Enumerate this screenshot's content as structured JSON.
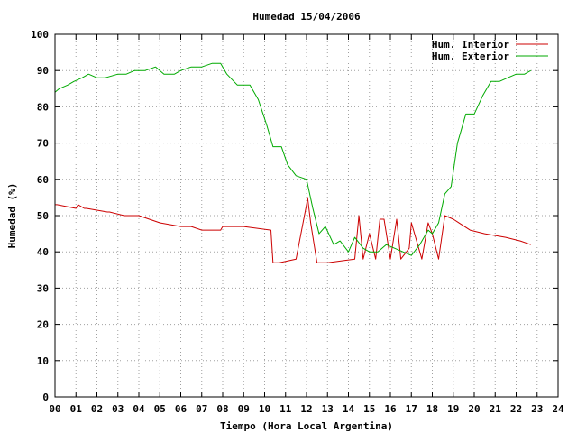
{
  "chart_data": {
    "type": "line",
    "title": "Humedad 15/04/2006",
    "xlabel": "Tiempo (Hora Local Argentina)",
    "ylabel": "Humedad (%)",
    "xlim": [
      0,
      24
    ],
    "ylim": [
      0,
      100
    ],
    "x_ticks": [
      0,
      1,
      2,
      3,
      4,
      5,
      6,
      7,
      8,
      9,
      10,
      11,
      12,
      13,
      14,
      15,
      16,
      17,
      18,
      19,
      20,
      21,
      22,
      23,
      24
    ],
    "x_tick_labels": [
      "00",
      "01",
      "02",
      "03",
      "04",
      "05",
      "06",
      "07",
      "08",
      "09",
      "10",
      "11",
      "12",
      "13",
      "14",
      "15",
      "16",
      "17",
      "18",
      "19",
      "20",
      "21",
      "22",
      "23",
      "24"
    ],
    "y_ticks": [
      0,
      10,
      20,
      30,
      40,
      50,
      60,
      70,
      80,
      90,
      100
    ],
    "grid": true,
    "legend_position": "top-right",
    "series": [
      {
        "name": "Hum. Interior",
        "color": "#cc0000",
        "x": [
          0.0,
          0.1,
          1.0,
          1.1,
          1.4,
          1.5,
          2.5,
          2.6,
          3.3,
          3.4,
          4.0,
          4.5,
          5.0,
          6.0,
          6.5,
          7.0,
          7.9,
          8.0,
          9.0,
          10.3,
          10.4,
          10.7,
          11.5,
          12.0,
          12.05,
          12.2,
          12.5,
          12.8,
          13.0,
          14.3,
          14.5,
          14.7,
          15.0,
          15.3,
          15.5,
          15.7,
          16.0,
          16.3,
          16.5,
          16.9,
          17.0,
          17.5,
          17.8,
          18.0,
          18.3,
          18.6,
          19.0,
          19.8,
          20.5,
          21.5,
          22.2,
          22.7
        ],
        "y": [
          53,
          53,
          52,
          53,
          52,
          52,
          51,
          51,
          50,
          50,
          50,
          49,
          48,
          47,
          47,
          46,
          46,
          47,
          47,
          46,
          37,
          37,
          38,
          53,
          55,
          48,
          37,
          37,
          37,
          38,
          50,
          38,
          45,
          38,
          49,
          49,
          38,
          49,
          38,
          41,
          48,
          38,
          48,
          45,
          38,
          50,
          49,
          46,
          45,
          44,
          43,
          42
        ]
      },
      {
        "name": "Hum. Exterior",
        "color": "#00aa00",
        "x": [
          0.0,
          0.2,
          0.6,
          0.9,
          1.3,
          1.6,
          2.0,
          2.4,
          3.0,
          3.4,
          3.8,
          4.3,
          4.8,
          5.2,
          5.7,
          6.0,
          6.5,
          7.0,
          7.5,
          7.9,
          8.2,
          8.7,
          9.3,
          9.7,
          10.1,
          10.4,
          10.8,
          11.1,
          11.5,
          12.0,
          12.3,
          12.6,
          12.9,
          13.3,
          13.6,
          14.0,
          14.3,
          14.7,
          15.0,
          15.4,
          15.8,
          16.2,
          16.6,
          17.0,
          17.4,
          17.8,
          18.0,
          18.3,
          18.6,
          18.9,
          19.2,
          19.6,
          20.0,
          20.4,
          20.8,
          21.2,
          21.6,
          22.0,
          22.4,
          22.7
        ],
        "y": [
          84,
          85,
          86,
          87,
          88,
          89,
          88,
          88,
          89,
          89,
          90,
          90,
          91,
          89,
          89,
          90,
          91,
          91,
          92,
          92,
          89,
          86,
          86,
          82,
          75,
          69,
          69,
          64,
          61,
          60,
          52,
          45,
          47,
          42,
          43,
          40,
          44,
          41,
          40,
          40,
          42,
          41,
          40,
          39,
          42,
          46,
          45,
          48,
          56,
          58,
          70,
          78,
          78,
          83,
          87,
          87,
          88,
          89,
          89,
          90
        ]
      }
    ]
  }
}
